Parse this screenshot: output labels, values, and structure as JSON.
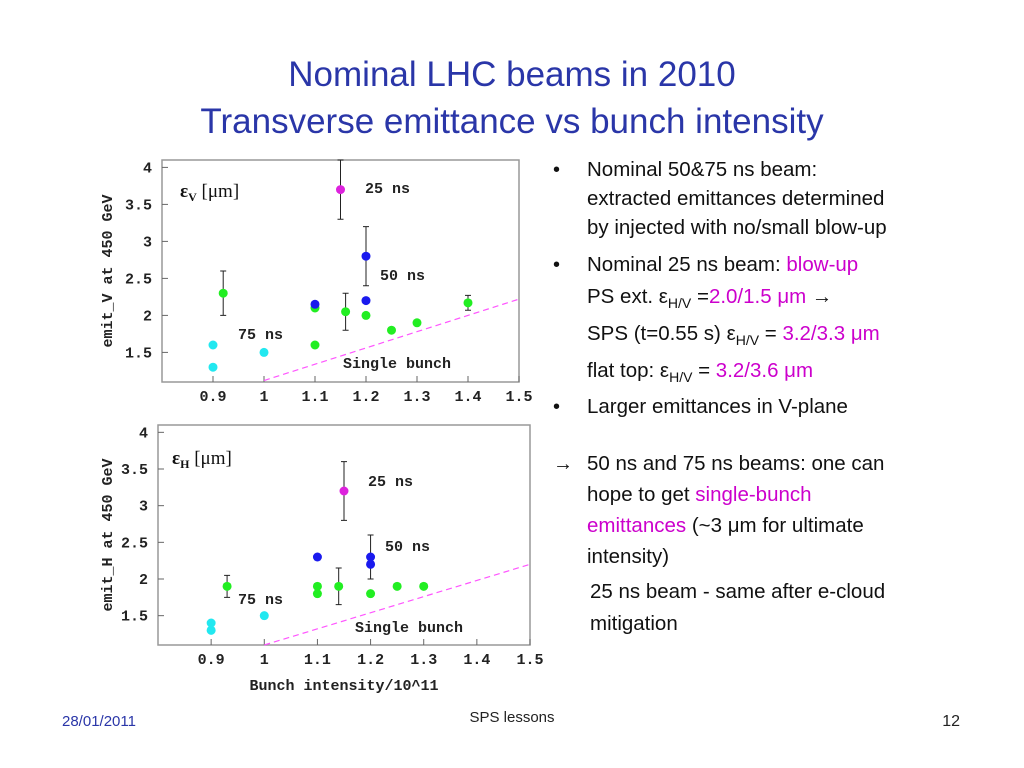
{
  "title": [
    "Nominal LHC beams in 2010",
    "Transverse emittance vs bunch intensity"
  ],
  "chart_data": [
    {
      "type": "scatter",
      "ylabel": "emit_V at 450 GeV",
      "panel_label": {
        "symbol": "ε",
        "sub": "V",
        "unit": "[μm]"
      },
      "xlim": [
        0.8,
        1.5
      ],
      "ylim": [
        1.1,
        4.1
      ],
      "xticks": [
        0.9,
        1,
        1.1,
        1.2,
        1.3,
        1.4,
        1.5
      ],
      "yticks": [
        1.5,
        2,
        2.5,
        3,
        3.5,
        4
      ],
      "annotations": [
        "25 ns",
        "50 ns",
        "75 ns",
        "Single bunch"
      ],
      "reference_line": {
        "color": "#ff55ff",
        "x": [
          1.0,
          1.5
        ],
        "values": [
          1.12,
          2.22
        ]
      },
      "series": [
        {
          "color": "#22e8f0",
          "x": [
            0.9,
            0.9,
            1.0
          ],
          "values": [
            1.6,
            1.3,
            1.5
          ],
          "errors": [
            null,
            null,
            null
          ]
        },
        {
          "color": "#22ee22",
          "x": [
            0.92,
            1.1,
            1.1,
            1.16,
            1.2,
            1.25,
            1.3,
            1.4
          ],
          "values": [
            2.3,
            2.1,
            1.6,
            2.05,
            2.0,
            1.8,
            1.9,
            2.17
          ],
          "errors": [
            0.3,
            null,
            null,
            0.25,
            null,
            null,
            null,
            0.1
          ]
        },
        {
          "color": "#1a1aee",
          "x": [
            1.1,
            1.2,
            1.2
          ],
          "values": [
            2.15,
            2.8,
            2.2
          ],
          "errors": [
            null,
            0.4,
            null
          ]
        },
        {
          "color": "#dd22dd",
          "x": [
            1.15
          ],
          "values": [
            3.7
          ],
          "errors": [
            0.4
          ]
        }
      ]
    },
    {
      "type": "scatter",
      "ylabel": "emit_H at 450 GeV",
      "xlabel": "Bunch intensity/10^11",
      "panel_label": {
        "symbol": "ε",
        "sub": "H",
        "unit": "[μm]"
      },
      "xlim": [
        0.8,
        1.5
      ],
      "ylim": [
        1.1,
        4.1
      ],
      "xticks": [
        0.9,
        1,
        1.1,
        1.2,
        1.3,
        1.4,
        1.5
      ],
      "yticks": [
        1.5,
        2,
        2.5,
        3,
        3.5,
        4
      ],
      "annotations": [
        "25 ns",
        "50 ns",
        "75 ns",
        "Single bunch"
      ],
      "reference_line": {
        "color": "#ff55ff",
        "x": [
          1.0,
          1.5
        ],
        "values": [
          1.1,
          2.2
        ]
      },
      "series": [
        {
          "color": "#22e8f0",
          "x": [
            0.9,
            0.9,
            1.0
          ],
          "values": [
            1.4,
            1.3,
            1.5
          ],
          "errors": [
            null,
            null,
            null
          ]
        },
        {
          "color": "#22ee22",
          "x": [
            0.93,
            1.14,
            1.1,
            1.1,
            1.2,
            1.25,
            1.3
          ],
          "values": [
            1.9,
            1.9,
            1.9,
            1.8,
            1.8,
            1.9,
            1.9
          ],
          "errors": [
            0.15,
            0.25,
            null,
            null,
            null,
            null,
            null
          ]
        },
        {
          "color": "#1a1aee",
          "x": [
            1.1,
            1.2,
            1.2
          ],
          "values": [
            2.3,
            2.3,
            2.2
          ],
          "errors": [
            null,
            0.3,
            null
          ]
        },
        {
          "color": "#dd22dd",
          "x": [
            1.15
          ],
          "values": [
            3.2
          ],
          "errors": [
            0.4
          ]
        }
      ]
    }
  ],
  "text_blocks": [
    {
      "marker": "•",
      "lines": [
        [
          {
            "text": "Nominal 50&75 ns beam:"
          }
        ],
        [
          {
            "text": "extracted emittances determined"
          }
        ],
        [
          {
            "text": "by injected with no/small blow-up"
          }
        ]
      ]
    },
    {
      "marker": "•",
      "lines": [
        [
          {
            "text": "Nominal 25 ns beam: "
          },
          {
            "text": "blow-up",
            "color": "#cc00cc"
          }
        ],
        [
          {
            "text": "PS ext. ε"
          },
          {
            "text": "H/V",
            "sub": true
          },
          {
            "text": " ="
          },
          {
            "text": "2.0/1.5 μm",
            "color": "#cc00cc"
          },
          {
            "text": " →"
          }
        ]
      ]
    },
    {
      "lines": [
        [
          {
            "text": "SPS (t=0.55 s) ε"
          },
          {
            "text": "H/V",
            "sub": true
          },
          {
            "text": " = "
          },
          {
            "text": "3.2/3.3 μm",
            "color": "#cc00cc"
          }
        ]
      ]
    },
    {
      "lines": [
        [
          {
            "text": "flat top: ε"
          },
          {
            "text": "H/V",
            "sub": true
          },
          {
            "text": " = "
          },
          {
            "text": "3.2/3.6 μm",
            "color": "#cc00cc"
          }
        ]
      ]
    },
    {
      "marker": "•",
      "lines": [
        [
          {
            "text": "Larger emittances in V-plane"
          }
        ]
      ]
    },
    {
      "marker": "→",
      "lines": [
        [
          {
            "text": "50 ns and 75 ns beams: one can"
          }
        ],
        [
          {
            "text": "hope to get "
          },
          {
            "text": "single-bunch",
            "color": "#cc00cc"
          }
        ],
        [
          {
            "text": "emittances",
            "color": "#cc00cc"
          },
          {
            "text": " (~3 μm for ultimate"
          }
        ],
        [
          {
            "text": "intensity)"
          }
        ]
      ]
    },
    {
      "lines": [
        [
          {
            "text": "25 ns beam - same after e-cloud"
          }
        ],
        [
          {
            "text": "mitigation"
          }
        ]
      ]
    }
  ],
  "footer": {
    "date": "28/01/2011",
    "center": "SPS lessons",
    "page": "12"
  }
}
